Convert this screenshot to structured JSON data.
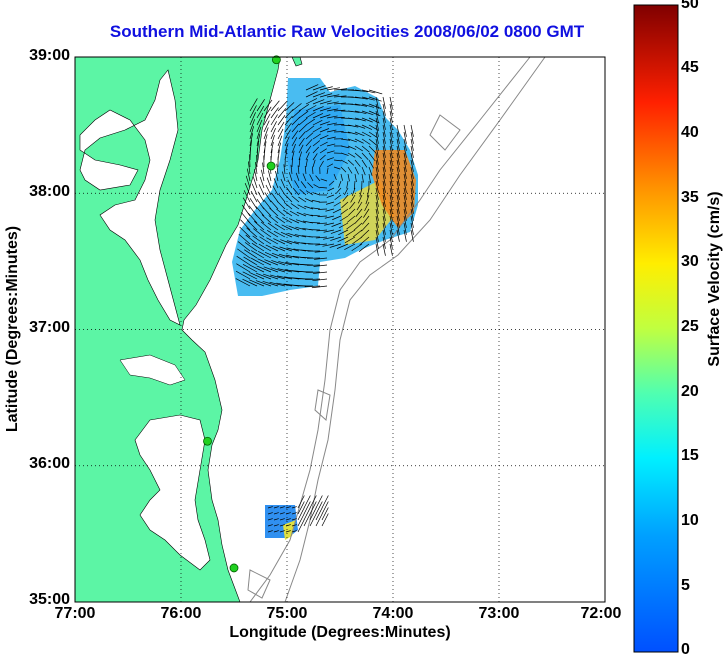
{
  "title": "Southern Mid-Atlantic Raw Velocities 2008/06/02 0800 GMT",
  "xlabel": "Longitude (Degrees:Minutes)",
  "ylabel": "Latitude (Degrees:Minutes)",
  "colorbar": {
    "label": "Surface Velocity (cm/s)",
    "ticks": [
      "0",
      "5",
      "10",
      "15",
      "20",
      "25",
      "30",
      "35",
      "40",
      "45",
      "50"
    ],
    "min": 0,
    "max": 50,
    "colormap": "jet"
  },
  "axes": {
    "x_ticks": [
      "77:00",
      "76:00",
      "75:00",
      "74:00",
      "73:00",
      "72:00"
    ],
    "y_ticks": [
      "39:00",
      "38:00",
      "37:00",
      "36:00",
      "35:00"
    ],
    "x_range": [
      -77,
      -72
    ],
    "y_range": [
      35,
      39
    ],
    "grid": "dotted"
  },
  "colors": {
    "land": "#5cf5a5",
    "station": "#20d020",
    "title": "#1010e0",
    "bathymetry": "#888888"
  },
  "stations": [
    {
      "lon": -75.1,
      "lat": 38.98
    },
    {
      "lon": -75.15,
      "lat": 38.2
    },
    {
      "lon": -75.75,
      "lat": 36.18
    },
    {
      "lon": -75.5,
      "lat": 35.25
    }
  ]
}
